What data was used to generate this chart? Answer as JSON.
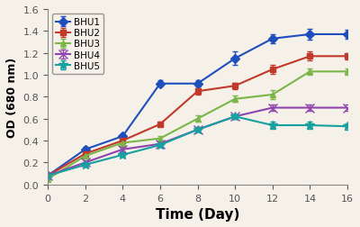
{
  "x": [
    0,
    2,
    4,
    6,
    8,
    10,
    12,
    14,
    16
  ],
  "BHU1": [
    0.08,
    0.32,
    0.44,
    0.92,
    0.92,
    1.15,
    1.33,
    1.37,
    1.37
  ],
  "BHU2": [
    0.08,
    0.28,
    0.4,
    0.55,
    0.85,
    0.9,
    1.05,
    1.17,
    1.17
  ],
  "BHU3": [
    0.05,
    0.26,
    0.38,
    0.42,
    0.6,
    0.78,
    0.82,
    1.03,
    1.03
  ],
  "BHU4": [
    0.08,
    0.2,
    0.32,
    0.37,
    0.5,
    0.62,
    0.7,
    0.7,
    0.7
  ],
  "BHU5": [
    0.08,
    0.18,
    0.27,
    0.36,
    0.5,
    0.62,
    0.54,
    0.54,
    0.53
  ],
  "BHU1_err": [
    0.01,
    0.02,
    0.02,
    0.03,
    0.03,
    0.06,
    0.04,
    0.05,
    0.04
  ],
  "BHU2_err": [
    0.01,
    0.02,
    0.02,
    0.02,
    0.03,
    0.03,
    0.04,
    0.04,
    0.03
  ],
  "BHU3_err": [
    0.01,
    0.02,
    0.02,
    0.02,
    0.03,
    0.03,
    0.04,
    0.03,
    0.03
  ],
  "BHU4_err": [
    0.01,
    0.02,
    0.02,
    0.02,
    0.02,
    0.02,
    0.03,
    0.03,
    0.03
  ],
  "BHU5_err": [
    0.01,
    0.02,
    0.02,
    0.02,
    0.02,
    0.02,
    0.03,
    0.03,
    0.03
  ],
  "colors": {
    "BHU1": "#1f4ebd",
    "BHU2": "#c0392b",
    "BHU3": "#7ab648",
    "BHU4": "#8e44ad",
    "BHU5": "#17a0a0"
  },
  "markers": {
    "BHU1": "D",
    "BHU2": "s",
    "BHU3": "^",
    "BHU4": "x",
    "BHU5": "*"
  },
  "xlabel": "Time (Day)",
  "ylabel": "OD (680 nm)",
  "ylim": [
    0.0,
    1.6
  ],
  "xlim": [
    0,
    16
  ],
  "yticks": [
    0.0,
    0.2,
    0.4,
    0.6,
    0.8,
    1.0,
    1.2,
    1.4,
    1.6
  ],
  "xticks": [
    0,
    2,
    4,
    6,
    8,
    10,
    12,
    14,
    16
  ],
  "background_color": "#f5f0e8"
}
